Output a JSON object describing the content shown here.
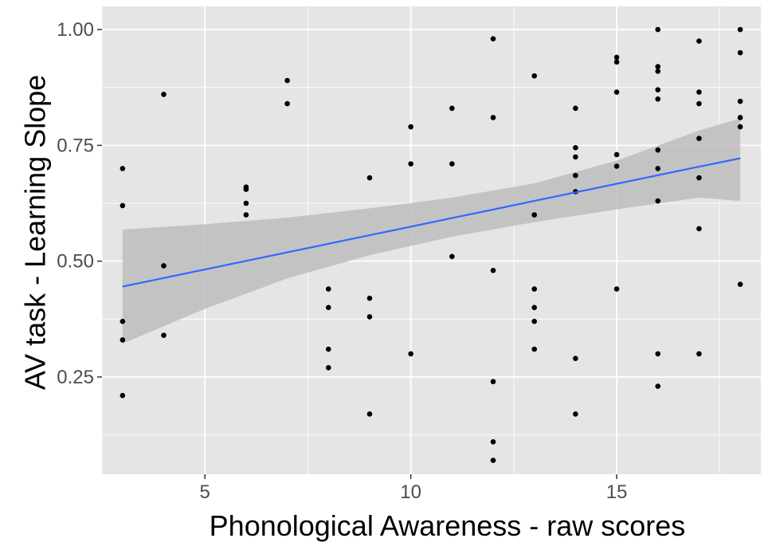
{
  "chart_data": {
    "type": "scatter",
    "title": "",
    "xlabel": "Phonological Awareness - raw scores",
    "ylabel": "AV task - Learning Slope",
    "xlim": [
      2.5,
      18.5
    ],
    "ylim": [
      0.04,
      1.05
    ],
    "x_ticks": [
      5,
      10,
      15
    ],
    "x_tick_labels": [
      "5",
      "10",
      "15"
    ],
    "y_ticks": [
      0.25,
      0.5,
      0.75,
      1.0
    ],
    "y_tick_labels": [
      "0.25",
      "0.50",
      "0.75",
      "1.00"
    ],
    "grid": true,
    "legend": "none",
    "colors": {
      "panel": "#e5e5e5",
      "grid": "#ffffff",
      "point": "#000000",
      "fit_line": "#3366ff",
      "ribbon": "#bdbdbd"
    },
    "points": [
      {
        "x": 3,
        "y": 0.7
      },
      {
        "x": 3,
        "y": 0.62
      },
      {
        "x": 3,
        "y": 0.37
      },
      {
        "x": 3,
        "y": 0.33
      },
      {
        "x": 3,
        "y": 0.21
      },
      {
        "x": 4,
        "y": 0.86
      },
      {
        "x": 4,
        "y": 0.49
      },
      {
        "x": 4,
        "y": 0.34
      },
      {
        "x": 6,
        "y": 0.66
      },
      {
        "x": 6,
        "y": 0.655
      },
      {
        "x": 6,
        "y": 0.625
      },
      {
        "x": 6,
        "y": 0.6
      },
      {
        "x": 7,
        "y": 0.89
      },
      {
        "x": 7,
        "y": 0.84
      },
      {
        "x": 8,
        "y": 0.44
      },
      {
        "x": 8,
        "y": 0.4
      },
      {
        "x": 8,
        "y": 0.31
      },
      {
        "x": 8,
        "y": 0.27
      },
      {
        "x": 9,
        "y": 0.68
      },
      {
        "x": 9,
        "y": 0.42
      },
      {
        "x": 9,
        "y": 0.38
      },
      {
        "x": 9,
        "y": 0.17
      },
      {
        "x": 10,
        "y": 0.79
      },
      {
        "x": 10,
        "y": 0.71
      },
      {
        "x": 10,
        "y": 0.3
      },
      {
        "x": 11,
        "y": 0.83
      },
      {
        "x": 11,
        "y": 0.71
      },
      {
        "x": 11,
        "y": 0.51
      },
      {
        "x": 12,
        "y": 0.98
      },
      {
        "x": 12,
        "y": 0.81
      },
      {
        "x": 12,
        "y": 0.48
      },
      {
        "x": 12,
        "y": 0.24
      },
      {
        "x": 12,
        "y": 0.11
      },
      {
        "x": 12,
        "y": 0.07
      },
      {
        "x": 13,
        "y": 0.9
      },
      {
        "x": 13,
        "y": 0.6
      },
      {
        "x": 13,
        "y": 0.44
      },
      {
        "x": 13,
        "y": 0.4
      },
      {
        "x": 13,
        "y": 0.37
      },
      {
        "x": 13,
        "y": 0.31
      },
      {
        "x": 14,
        "y": 0.83
      },
      {
        "x": 14,
        "y": 0.745
      },
      {
        "x": 14,
        "y": 0.725
      },
      {
        "x": 14,
        "y": 0.685
      },
      {
        "x": 14,
        "y": 0.65
      },
      {
        "x": 14,
        "y": 0.29
      },
      {
        "x": 14,
        "y": 0.17
      },
      {
        "x": 15,
        "y": 0.94
      },
      {
        "x": 15,
        "y": 0.93
      },
      {
        "x": 15,
        "y": 0.865
      },
      {
        "x": 15,
        "y": 0.73
      },
      {
        "x": 15,
        "y": 0.705
      },
      {
        "x": 15,
        "y": 0.44
      },
      {
        "x": 16,
        "y": 1.0
      },
      {
        "x": 16,
        "y": 0.92
      },
      {
        "x": 16,
        "y": 0.91
      },
      {
        "x": 16,
        "y": 0.87
      },
      {
        "x": 16,
        "y": 0.85
      },
      {
        "x": 16,
        "y": 0.74
      },
      {
        "x": 16,
        "y": 0.7
      },
      {
        "x": 16,
        "y": 0.63
      },
      {
        "x": 16,
        "y": 0.3
      },
      {
        "x": 16,
        "y": 0.23
      },
      {
        "x": 17,
        "y": 0.975
      },
      {
        "x": 17,
        "y": 0.865
      },
      {
        "x": 17,
        "y": 0.84
      },
      {
        "x": 17,
        "y": 0.765
      },
      {
        "x": 17,
        "y": 0.68
      },
      {
        "x": 17,
        "y": 0.57
      },
      {
        "x": 17,
        "y": 0.3
      },
      {
        "x": 18,
        "y": 1.0
      },
      {
        "x": 18,
        "y": 0.95
      },
      {
        "x": 18,
        "y": 0.845
      },
      {
        "x": 18,
        "y": 0.81
      },
      {
        "x": 18,
        "y": 0.79
      },
      {
        "x": 18,
        "y": 0.45
      }
    ],
    "fit": {
      "x": [
        3,
        5,
        7,
        9,
        11,
        13,
        15,
        17,
        18
      ],
      "y": [
        0.445,
        0.482,
        0.519,
        0.556,
        0.593,
        0.63,
        0.667,
        0.704,
        0.722
      ],
      "lower": [
        0.322,
        0.397,
        0.463,
        0.513,
        0.553,
        0.584,
        0.612,
        0.637,
        0.63
      ],
      "upper": [
        0.568,
        0.58,
        0.594,
        0.614,
        0.637,
        0.668,
        0.717,
        0.782,
        0.808
      ]
    }
  }
}
